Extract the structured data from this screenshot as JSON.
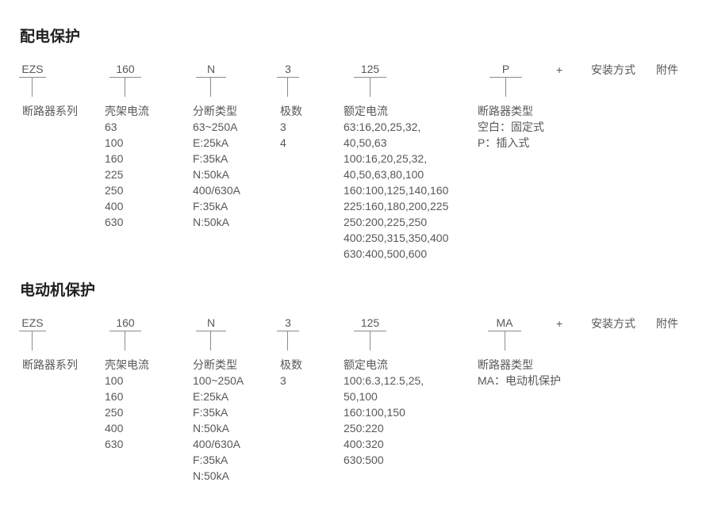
{
  "page": {
    "background": "#ffffff",
    "body_text_color": "#57585a",
    "title_color": "#212121",
    "line_color": "#8c8c8c"
  },
  "sections": [
    {
      "title": "配电保护",
      "codes": [
        "EZS",
        "160",
        "N",
        "3",
        "125",
        "P"
      ],
      "plus": "+",
      "mounting": "安装方式",
      "accessory": "附件",
      "columns": [
        {
          "header": "断路器系列",
          "items": []
        },
        {
          "header": "壳架电流",
          "items": [
            "63",
            "100",
            "160",
            "225",
            "250",
            "400",
            "630"
          ]
        },
        {
          "header": "分断类型",
          "items": [
            "63~250A",
            "E:25kA",
            "F:35kA",
            "N:50kA",
            "400/630A",
            "F:35kA",
            "N:50kA"
          ]
        },
        {
          "header": "极数",
          "items": [
            "3",
            "4"
          ]
        },
        {
          "header": "额定电流",
          "items": [
            "63:16,20,25,32,",
            "40,50,63",
            "100:16,20,25,32,",
            "40,50,63,80,100",
            "160:100,125,140,160",
            "225:160,180,200,225",
            "250:200,225,250",
            "400:250,315,350,400",
            "630:400,500,600"
          ]
        },
        {
          "header": "断路器类型",
          "items": [
            "空白：固定式",
            "P：插入式"
          ]
        }
      ]
    },
    {
      "title": "电动机保护",
      "codes": [
        "EZS",
        "160",
        "N",
        "3",
        "125",
        "MA"
      ],
      "plus": "+",
      "mounting": "安装方式",
      "accessory": "附件",
      "columns": [
        {
          "header": "断路器系列",
          "items": []
        },
        {
          "header": "壳架电流",
          "items": [
            "100",
            "160",
            "250",
            "400",
            "630"
          ]
        },
        {
          "header": "分断类型",
          "items": [
            "100~250A",
            "E:25kA",
            "F:35kA",
            "N:50kA",
            "400/630A",
            "F:35kA",
            "N:50kA"
          ]
        },
        {
          "header": "极数",
          "items": [
            "3"
          ]
        },
        {
          "header": "额定电流",
          "items": [
            "100:6.3,12.5,25,",
            "50,100",
            "160:100,150",
            "250:220",
            "400:320",
            "630:500"
          ]
        },
        {
          "header": "断路器类型",
          "items": [
            "MA：电动机保护"
          ]
        }
      ]
    }
  ]
}
